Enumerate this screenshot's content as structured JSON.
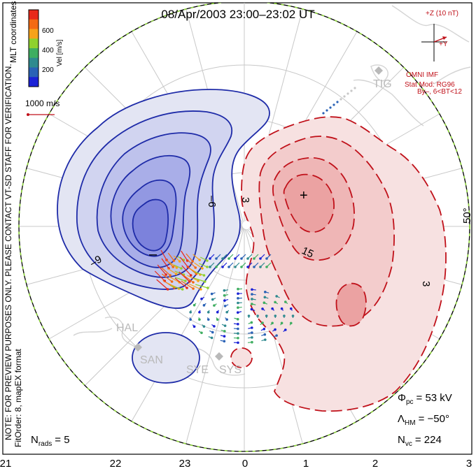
{
  "title": "08/Apr/2003 23:00–23:02 UT",
  "side_note_line1": "NOTE: FOR PREVIEW PURPOSES ONLY. PLEASE CONTACT VT-SD STAFF FOR VERIFICATION.",
  "side_note_line2": "FitOrder: 8, mapEX format",
  "mlt_label": "MLT coordinates",
  "colorbar": {
    "label": "Vel [m/s]",
    "ticks": [
      "600",
      "400",
      "200"
    ],
    "colors": [
      "#e8291a",
      "#f36a12",
      "#f7a21a",
      "#8fd12e",
      "#3fae61",
      "#2f8a8f",
      "#2a62b6",
      "#1b22d6"
    ]
  },
  "vector_scale_label": "1000 m/s",
  "imf": {
    "z_label": "+Z (10 nT)",
    "y_label": "+Y",
    "source": "OMNI IMF",
    "model_line1": "Stat Mod: RG96",
    "model_line2": "By–, 6<BT<12"
  },
  "contour_labels": {
    "neg_a": "–6",
    "neg_b": "–9",
    "pos_a": "3",
    "pos_b": "15",
    "pos_c": "3",
    "min_mark": "–",
    "max_mark": "+"
  },
  "latitude_label": "50°",
  "stations": [
    "TIG",
    "HAL",
    "SAN",
    "SYE",
    "SYS"
  ],
  "stats": {
    "phi_symbol": "Φ",
    "phi_sub": "pc",
    "phi_value": "= 53 kV",
    "lambda_symbol": "Λ",
    "lambda_sub": "HM",
    "lambda_value": "= −50°",
    "nvc_symbol": "N",
    "nvc_sub": "vc",
    "nvc_value": "= 224",
    "nrads_symbol": "N",
    "nrads_sub": "rads",
    "nrads_value": "= 5"
  },
  "mlt_axis": [
    "21",
    "22",
    "23",
    "0",
    "1",
    "2",
    "3"
  ]
}
